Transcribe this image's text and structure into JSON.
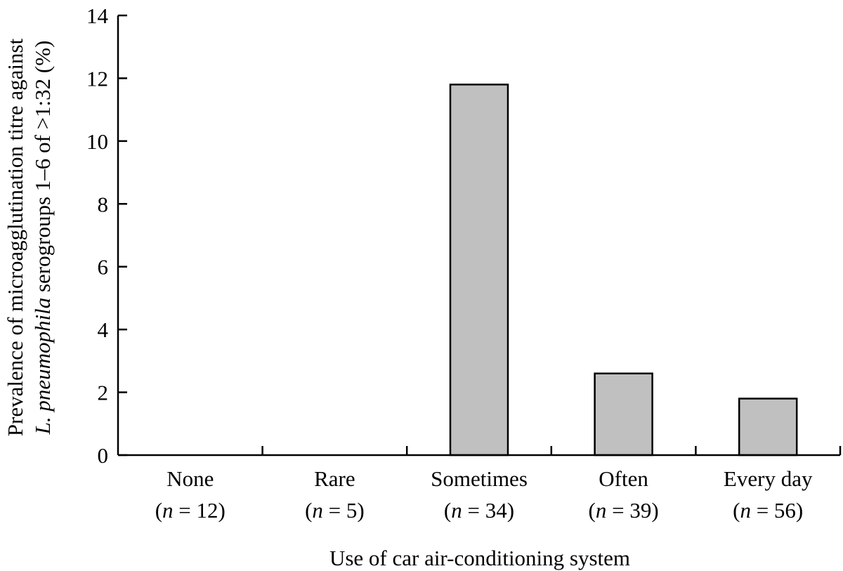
{
  "chart_data": {
    "type": "bar",
    "categories": [
      "None",
      "Rare",
      "Sometimes",
      "Often",
      "Every day"
    ],
    "category_counts": [
      "n = 12",
      "n = 5",
      "n = 34",
      "n = 39",
      "n = 56"
    ],
    "values": [
      0,
      0,
      11.8,
      2.6,
      1.8
    ],
    "ylim": [
      0,
      14
    ],
    "yticks": [
      0,
      2,
      4,
      6,
      8,
      10,
      12,
      14
    ],
    "xlabel": "Use of car air-conditioning system",
    "ylabel_line1": "Prevalence of microagglutination titre against",
    "ylabel_line2_italic": "L. pneumophila",
    "ylabel_line2_rest": " serogroups 1–6 of >1:32 (%)",
    "bar_color": "#c0c0c0",
    "grid": false,
    "legend": "none"
  }
}
